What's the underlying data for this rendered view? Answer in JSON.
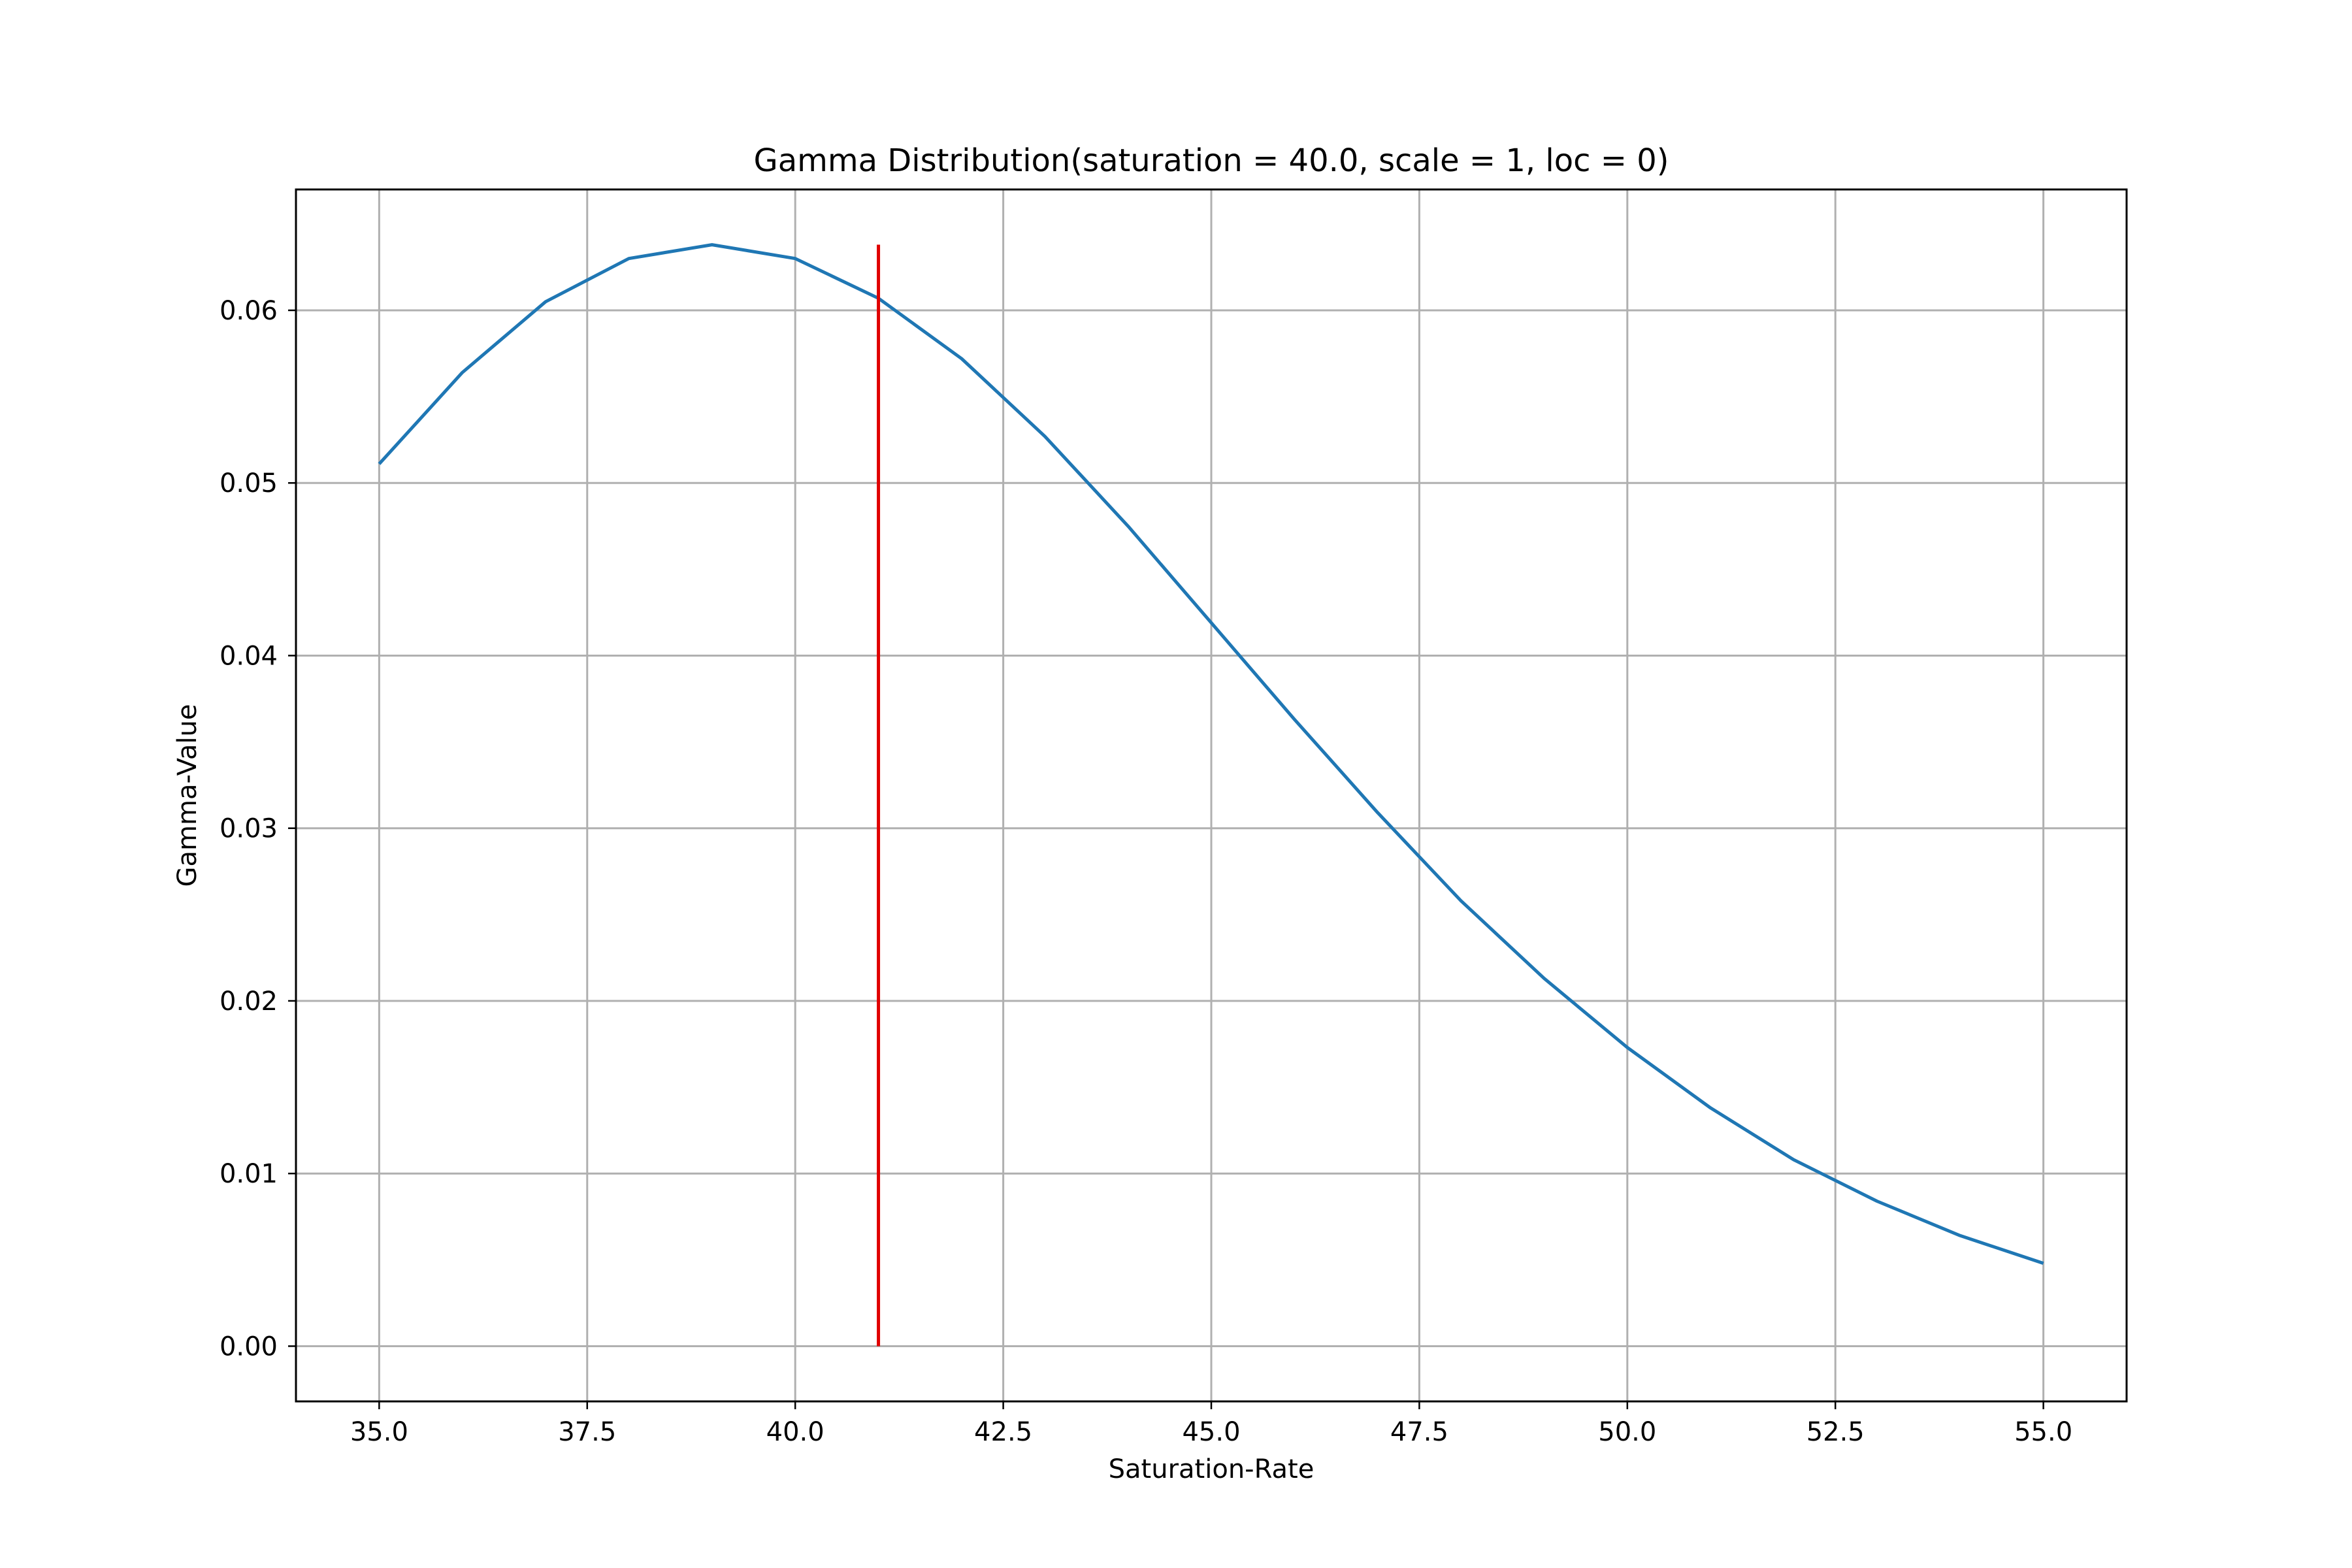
{
  "chart_data": {
    "type": "line",
    "title": "Gamma Distribution(saturation = 40.0, scale = 1, loc = 0)",
    "xlabel": "Saturation-Rate",
    "ylabel": "Gamma-Value",
    "xlim": [
      34.0,
      56.0
    ],
    "ylim": [
      -0.0032,
      0.067
    ],
    "grid": true,
    "x_ticks": [
      35.0,
      37.5,
      40.0,
      42.5,
      45.0,
      47.5,
      50.0,
      52.5,
      55.0
    ],
    "x_tick_labels": [
      "35.0",
      "37.5",
      "40.0",
      "42.5",
      "45.0",
      "47.5",
      "50.0",
      "52.5",
      "55.0"
    ],
    "y_ticks": [
      0.0,
      0.01,
      0.02,
      0.03,
      0.04,
      0.05,
      0.06
    ],
    "y_tick_labels": [
      "0.00",
      "0.01",
      "0.02",
      "0.03",
      "0.04",
      "0.05",
      "0.06"
    ],
    "series": [
      {
        "color": "#1f77b4",
        "x": [
          35,
          36,
          37,
          38,
          39,
          40,
          41,
          42,
          43,
          44,
          45,
          46,
          47,
          48,
          49,
          50,
          51,
          52,
          53,
          54,
          55
        ],
        "y": [
          0.0511,
          0.0564,
          0.0605,
          0.063,
          0.0638,
          0.063,
          0.0607,
          0.0572,
          0.0527,
          0.0475,
          0.0419,
          0.0363,
          0.0309,
          0.0258,
          0.0213,
          0.0173,
          0.0138,
          0.0108,
          0.0084,
          0.0064,
          0.0048
        ]
      }
    ],
    "vertical_line": {
      "x": 41.0,
      "y_from": 0.0,
      "y_to": 0.0638,
      "color": "#e00000"
    }
  }
}
